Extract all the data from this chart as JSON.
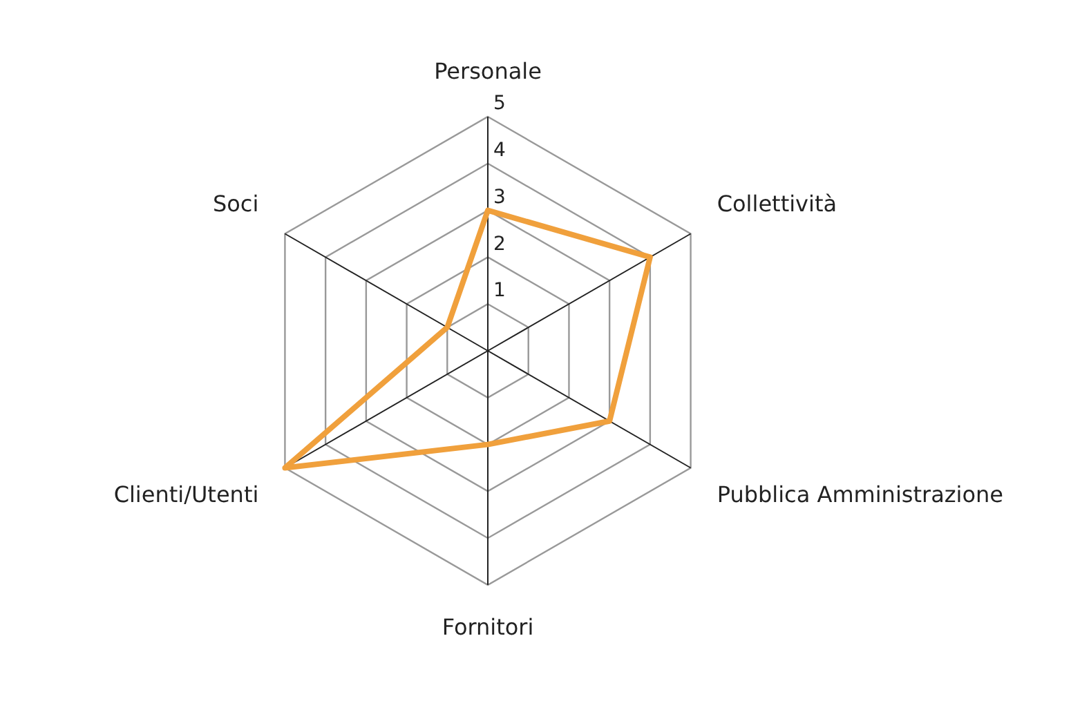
{
  "chart_data": {
    "type": "radar",
    "categories": [
      "Personale",
      "Collettività",
      "Pubblica Amministrazione",
      "Fornitori",
      "Clienti/Utenti",
      "Soci"
    ],
    "series": [
      {
        "color": "#f0a03c",
        "values": [
          3,
          4,
          3,
          2,
          5,
          1
        ]
      }
    ],
    "ylim": [
      0,
      5
    ],
    "yticks": [
      1,
      2,
      3,
      4,
      5
    ],
    "grid": true,
    "legend": false,
    "marker": "none"
  }
}
